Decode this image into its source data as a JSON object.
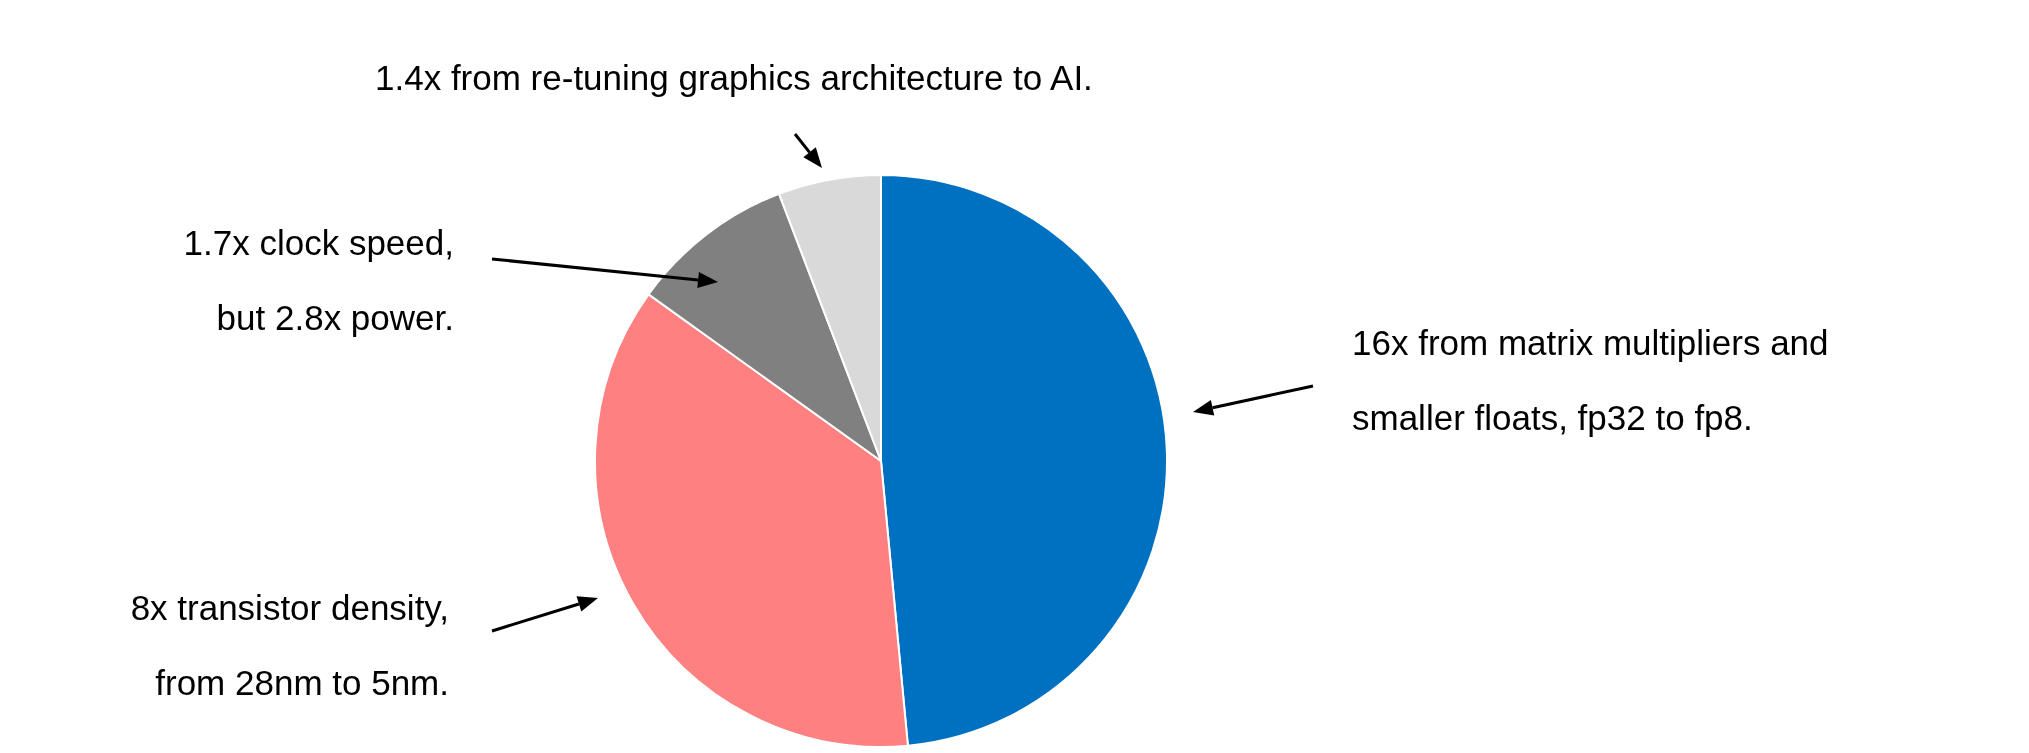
{
  "chart_data": {
    "type": "pie",
    "categories": [
      "16x from matrix multipliers and\nsmaller floats, fp32 to fp8.",
      "8x transistor density,\nfrom 28nm to 5nm.",
      "1.7x clock speed,\nbut 2.8x power.",
      "1.4x from re-tuning graphics architecture to AI."
    ],
    "values": [
      48.5,
      36.4,
      9.3,
      5.8
    ],
    "colors": [
      "#0070c0",
      "#ff8080",
      "#808080",
      "#d9d9d9"
    ],
    "legend": false
  }
}
